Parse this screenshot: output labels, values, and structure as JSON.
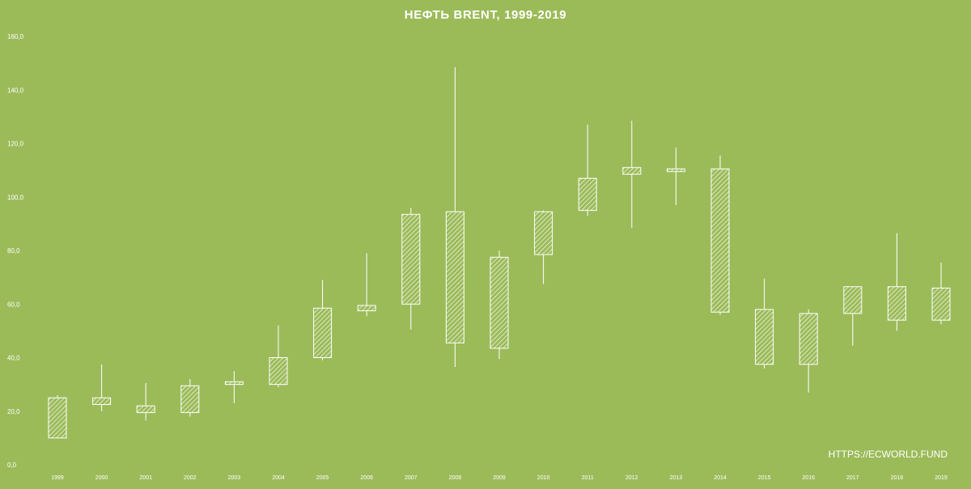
{
  "chart_data": {
    "type": "candlestick",
    "title": "НЕФТЬ BRENT,  1999-2019",
    "xlabel": "",
    "ylabel": "",
    "ylim": [
      0,
      160
    ],
    "yticks": [
      "0,0",
      "20,0",
      "40,0",
      "60,0",
      "80,0",
      "100,0",
      "120,0",
      "140,0",
      "160,0"
    ],
    "grid": false,
    "categories": [
      "1999",
      "2000",
      "2001",
      "2002",
      "2003",
      "2004",
      "2005",
      "2006",
      "2007",
      "2008",
      "2009",
      "2010",
      "2011",
      "2012",
      "2013",
      "2014",
      "2015",
      "2016",
      "2017",
      "2018",
      "2019"
    ],
    "candles": [
      {
        "year": "1999",
        "open": 10.0,
        "high": 26.0,
        "low": 10.0,
        "close": 25.0
      },
      {
        "year": "2000",
        "open": 25.0,
        "high": 37.5,
        "low": 20.0,
        "close": 22.5
      },
      {
        "year": "2001",
        "open": 22.0,
        "high": 30.5,
        "low": 16.5,
        "close": 19.5
      },
      {
        "year": "2002",
        "open": 19.5,
        "high": 32.0,
        "low": 18.0,
        "close": 29.5
      },
      {
        "year": "2003",
        "open": 30.0,
        "high": 35.0,
        "low": 23.0,
        "close": 31.0
      },
      {
        "year": "2004",
        "open": 30.0,
        "high": 52.0,
        "low": 29.0,
        "close": 40.0
      },
      {
        "year": "2005",
        "open": 40.0,
        "high": 69.0,
        "low": 39.0,
        "close": 58.5
      },
      {
        "year": "2006",
        "open": 59.5,
        "high": 79.0,
        "low": 55.5,
        "close": 57.5
      },
      {
        "year": "2007",
        "open": 60.0,
        "high": 96.0,
        "low": 50.5,
        "close": 93.5
      },
      {
        "year": "2008",
        "open": 94.5,
        "high": 148.5,
        "low": 36.5,
        "close": 45.5
      },
      {
        "year": "2009",
        "open": 43.5,
        "high": 80.0,
        "low": 39.5,
        "close": 77.5
      },
      {
        "year": "2010",
        "open": 78.5,
        "high": 95.0,
        "low": 67.5,
        "close": 94.5
      },
      {
        "year": "2011",
        "open": 95.0,
        "high": 127.0,
        "low": 93.0,
        "close": 107.0
      },
      {
        "year": "2012",
        "open": 111.0,
        "high": 128.5,
        "low": 88.5,
        "close": 108.5
      },
      {
        "year": "2013",
        "open": 110.5,
        "high": 118.5,
        "low": 97.0,
        "close": 109.5
      },
      {
        "year": "2014",
        "open": 110.5,
        "high": 115.5,
        "low": 56.0,
        "close": 57.0
      },
      {
        "year": "2015",
        "open": 58.0,
        "high": 69.5,
        "low": 36.0,
        "close": 37.5
      },
      {
        "year": "2016",
        "open": 37.5,
        "high": 58.0,
        "low": 27.0,
        "close": 56.5
      },
      {
        "year": "2017",
        "open": 56.5,
        "high": 66.5,
        "low": 44.5,
        "close": 66.5
      },
      {
        "year": "2018",
        "open": 66.5,
        "high": 86.5,
        "low": 50.0,
        "close": 54.0
      },
      {
        "year": "2019",
        "open": 54.0,
        "high": 75.5,
        "low": 52.5,
        "close": 66.0
      }
    ]
  },
  "watermark": "HTTPS://ECWORLD.FUND",
  "colors": {
    "background": "#9bbb59",
    "foreground": "#ffffff"
  }
}
